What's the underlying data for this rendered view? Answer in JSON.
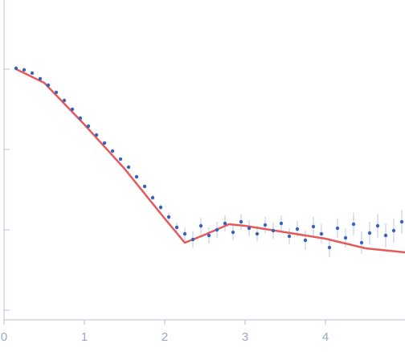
{
  "chart_data": {
    "type": "scatter",
    "x": [
      0.15,
      0.25,
      0.35,
      0.45,
      0.55,
      0.65,
      0.75,
      0.85,
      0.95,
      1.05,
      1.15,
      1.25,
      1.35,
      1.45,
      1.55,
      1.65,
      1.75,
      1.85,
      1.95,
      2.05,
      2.15,
      2.25,
      2.35,
      2.45,
      2.55,
      2.65,
      2.75,
      2.85,
      2.95,
      3.05,
      3.15,
      3.25,
      3.35,
      3.45,
      3.55,
      3.65,
      3.75,
      3.85,
      3.95,
      4.05,
      4.15,
      4.25,
      4.35,
      4.45,
      4.55,
      4.65,
      4.75,
      4.85,
      4.95
    ],
    "values": [
      3.01,
      2.99,
      2.95,
      2.88,
      2.8,
      2.71,
      2.61,
      2.5,
      2.39,
      2.29,
      2.18,
      2.08,
      1.98,
      1.88,
      1.78,
      1.66,
      1.54,
      1.4,
      1.28,
      1.16,
      1.03,
      0.95,
      0.88,
      1.05,
      0.93,
      1.0,
      1.08,
      0.97,
      1.1,
      1.02,
      0.95,
      1.06,
      0.99,
      1.08,
      0.92,
      1.01,
      0.87,
      1.04,
      0.95,
      0.78,
      1.02,
      0.9,
      1.07,
      0.84,
      0.96,
      1.05,
      0.93,
      0.99,
      1.1
    ],
    "errors": [
      0.01,
      0.01,
      0.01,
      0.01,
      0.01,
      0.01,
      0.01,
      0.01,
      0.01,
      0.01,
      0.01,
      0.01,
      0.01,
      0.01,
      0.01,
      0.02,
      0.02,
      0.03,
      0.04,
      0.05,
      0.06,
      0.08,
      0.1,
      0.1,
      0.1,
      0.1,
      0.1,
      0.1,
      0.1,
      0.1,
      0.1,
      0.1,
      0.1,
      0.1,
      0.1,
      0.1,
      0.12,
      0.12,
      0.12,
      0.12,
      0.12,
      0.12,
      0.14,
      0.14,
      0.14,
      0.15,
      0.15,
      0.15,
      0.15
    ],
    "color": "#3a63b8",
    "error_color": "#b7c9ea",
    "fit": {
      "x": [
        0.15,
        0.5,
        1.0,
        1.5,
        2.0,
        2.25,
        2.5,
        2.8,
        3.0,
        3.5,
        4.0,
        4.5,
        4.99
      ],
      "values": [
        3.0,
        2.83,
        2.31,
        1.76,
        1.14,
        0.84,
        0.94,
        1.07,
        1.05,
        0.97,
        0.89,
        0.77,
        0.72
      ],
      "color": "#e55b5b"
    },
    "xlim": [
      0,
      4.99
    ],
    "xticks": [
      0,
      1,
      2,
      3,
      4
    ],
    "ylim": [
      -0.12,
      3.86
    ],
    "yticks": [
      0,
      1,
      2,
      3
    ]
  }
}
